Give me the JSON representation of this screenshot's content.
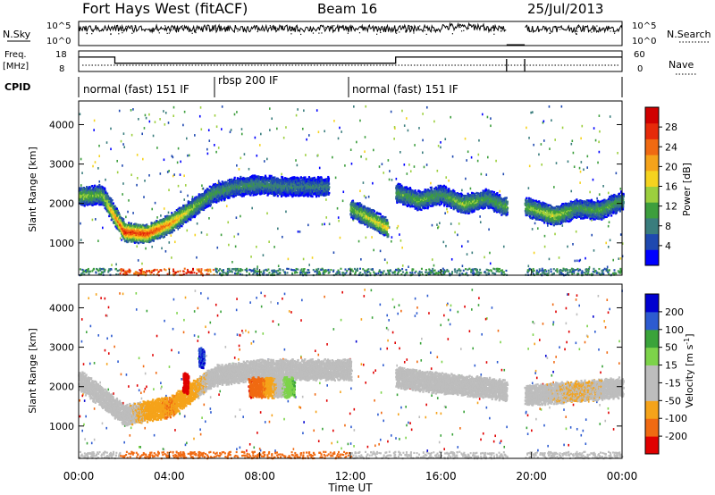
{
  "header": {
    "station": "Fort Hays West (fitACF)",
    "beam": "Beam 16",
    "date": "25/Jul/2013"
  },
  "noise_panel": {
    "left_label": "N.Sky",
    "right_label": "N.Search",
    "left_ticks": [
      "10^5",
      "10^0"
    ],
    "right_ticks": [
      "10^5",
      "10^0"
    ]
  },
  "freq_panel": {
    "left_label_line1": "Freq.",
    "left_label_line2": "[MHz]",
    "right_label": "Nave",
    "left_ticks": [
      "18",
      "8"
    ],
    "right_ticks": [
      "60",
      "0"
    ]
  },
  "cpid_panel": {
    "label": "CPID",
    "segments": [
      {
        "name": "normal (fast) 151 IF",
        "start_h": 0,
        "end_h": 6
      },
      {
        "name": "rbsp 200 IF",
        "start_h": 6,
        "end_h": 11.9
      },
      {
        "name": "normal (fast) 151 IF",
        "start_h": 11.9,
        "end_h": 24
      }
    ]
  },
  "power_panel": {
    "ylabel": "Slant Range [km]",
    "yticks": [
      "4000",
      "3000",
      "2000",
      "1000"
    ],
    "colorbar_label": "Power [dB]",
    "colorbar_ticks": [
      "28",
      "24",
      "20",
      "16",
      "12",
      "8",
      "4"
    ]
  },
  "velocity_panel": {
    "ylabel": "Slant Range [km]",
    "yticks": [
      "4000",
      "3000",
      "2000",
      "1000"
    ],
    "colorbar_label": "Velocity [m s",
    "colorbar_label_sup": "-1",
    "colorbar_label_end": "]",
    "colorbar_ticks": [
      "200",
      "100",
      "50",
      "15",
      "-15",
      "-50",
      "-100",
      "-200"
    ]
  },
  "xaxis": {
    "label": "Time UT",
    "ticks": [
      "00:00",
      "04:00",
      "08:00",
      "12:00",
      "16:00",
      "20:00",
      "00:00"
    ]
  },
  "colors": {
    "power_scale": [
      "#0000ff",
      "#1f49b0",
      "#3a7d7d",
      "#3d9e3d",
      "#9ccf3e",
      "#f5d31f",
      "#f5a31a",
      "#f06a12",
      "#e62a0a",
      "#d00000"
    ],
    "velocity_scale": [
      "#e00000",
      "#f06a12",
      "#f5a31a",
      "#bdbdbd",
      "#bdbdbd",
      "#7dd34a",
      "#3aa33a",
      "#2d5bd0",
      "#0000d0"
    ]
  },
  "chart_data": [
    {
      "type": "heatmap",
      "title": "Power",
      "xlabel": "Time UT",
      "ylabel": "Slant Range [km]",
      "xlim_hours": [
        0,
        24
      ],
      "ylim_km": [
        180,
        4600
      ],
      "value_label": "Power [dB]",
      "vlim": [
        0,
        30
      ],
      "bands": [
        {
          "t": [
            0,
            1,
            2,
            3,
            4,
            5,
            6,
            7,
            8,
            9,
            10,
            11
          ],
          "range_km": [
            2200,
            2250,
            1300,
            1250,
            1500,
            1900,
            2300,
            2450,
            2500,
            2450,
            2450,
            2450
          ],
          "peak_db": [
            14,
            12,
            27,
            26,
            22,
            14,
            10,
            9,
            9,
            8,
            8,
            8
          ]
        },
        {
          "t": [
            12,
            12.5,
            13,
            13.6
          ],
          "range_km": [
            1900,
            1750,
            1600,
            1400
          ],
          "peak_db": [
            12,
            14,
            16,
            18
          ]
        },
        {
          "t": [
            14,
            15,
            16,
            17,
            18,
            19
          ],
          "range_km": [
            2300,
            2100,
            2250,
            2000,
            2150,
            1900
          ],
          "peak_db": [
            10,
            12,
            10,
            14,
            10,
            12
          ]
        },
        {
          "t": [
            19.7,
            21,
            22,
            23,
            24
          ],
          "range_km": [
            1950,
            1700,
            1900,
            1850,
            2100
          ],
          "peak_db": [
            12,
            16,
            10,
            12,
            10
          ]
        }
      ]
    },
    {
      "type": "heatmap",
      "title": "Velocity",
      "xlabel": "Time UT",
      "ylabel": "Slant Range [km]",
      "xlim_hours": [
        0,
        24
      ],
      "ylim_km": [
        180,
        4600
      ],
      "value_label": "Velocity [m s-1]",
      "vlim": [
        -200,
        200
      ],
      "bands": [
        {
          "t": [
            0,
            2,
            4,
            6,
            8,
            10,
            12
          ],
          "range_km": [
            2200,
            1300,
            1500,
            2300,
            2450,
            2450,
            2450
          ],
          "velocity": [
            0,
            0,
            -50,
            0,
            0,
            0,
            0
          ]
        },
        {
          "t": [
            5.3
          ],
          "range_km": [
            2750
          ],
          "velocity": [
            200
          ]
        },
        {
          "t": [
            4.6
          ],
          "range_km": [
            2100
          ],
          "velocity": [
            -200
          ]
        },
        {
          "t": [
            7.5,
            9.5
          ],
          "range_km": [
            2000,
            2000
          ],
          "velocity": [
            -100,
            50
          ]
        },
        {
          "t": [
            14,
            16,
            18,
            19
          ],
          "range_km": [
            2250,
            2100,
            2000,
            1900
          ],
          "velocity": [
            0,
            0,
            0,
            0
          ]
        },
        {
          "t": [
            19.7,
            22,
            24
          ],
          "range_km": [
            1800,
            1900,
            2000
          ],
          "velocity": [
            0,
            -15,
            0
          ]
        }
      ]
    },
    {
      "type": "line",
      "title": "Freq. [MHz]",
      "x_hours": [
        0,
        1.6,
        1.6,
        12.0,
        12.0,
        14.0,
        14.0,
        18.9,
        19.7,
        24
      ],
      "values": [
        15,
        15,
        12,
        12,
        12,
        12,
        15,
        15,
        15,
        15
      ],
      "ylim": [
        8,
        18
      ]
    }
  ]
}
